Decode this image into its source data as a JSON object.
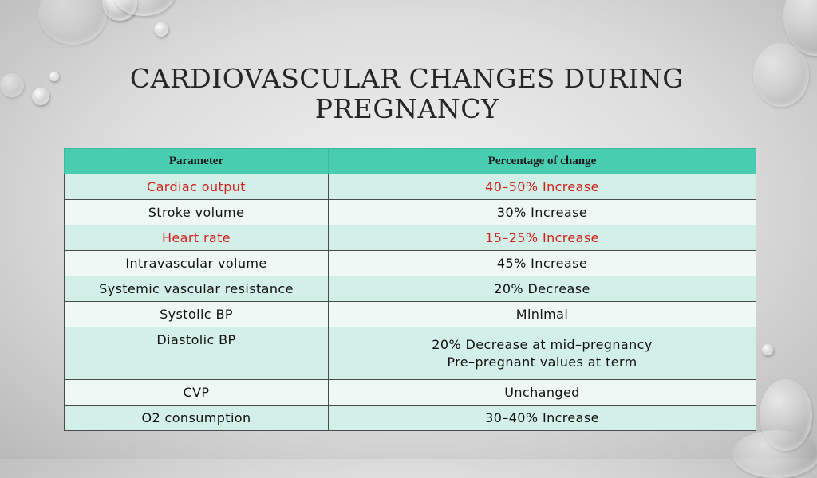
{
  "slide": {
    "title_line1": "CARDIOVASCULAR CHANGES DURING",
    "title_line2": "PREGNANCY"
  },
  "table": {
    "headers": [
      "Parameter",
      "Percentage of change"
    ],
    "rows": [
      {
        "parameter": "Cardiac output",
        "change": "40–50% Increase",
        "highlight": true
      },
      {
        "parameter": "Stroke volume",
        "change": "30% Increase",
        "highlight": false
      },
      {
        "parameter": "Heart rate",
        "change": "15–25% Increase",
        "highlight": true
      },
      {
        "parameter": "Intravascular volume",
        "change": "45% Increase",
        "highlight": false
      },
      {
        "parameter": "Systemic vascular resistance",
        "change": "20% Decrease",
        "highlight": false
      },
      {
        "parameter": "Systolic BP",
        "change": "Minimal",
        "highlight": false
      },
      {
        "parameter": "Diastolic BP",
        "change_line1": "20% Decrease at mid–pregnancy",
        "change_line2": "Pre–pregnant values at term",
        "highlight": false
      },
      {
        "parameter": "CVP",
        "change": "Unchanged",
        "highlight": false
      },
      {
        "parameter": "O2 consumption",
        "change": "30–40% Increase",
        "highlight": false
      }
    ]
  },
  "colors": {
    "header_bg": "#48cdb0",
    "row_odd": "#d3f0e8",
    "row_even": "#eef9f5",
    "highlight_text": "#d4201c"
  }
}
